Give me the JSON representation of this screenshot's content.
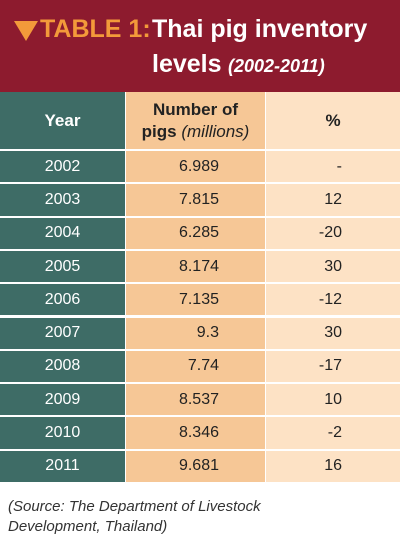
{
  "header": {
    "label": "TABLE 1:",
    "title": "Thai pig inventory",
    "title_line2": "levels",
    "subtitle": "(2002-2011)"
  },
  "table": {
    "columns": [
      "Year",
      {
        "main": "Number of",
        "main_line2": "pigs",
        "unit": "(millions)"
      },
      "%"
    ],
    "rows": [
      [
        "2002",
        "6.989",
        "-"
      ],
      [
        "2003",
        "7.815",
        "12"
      ],
      [
        "2004",
        "6.285",
        "-20"
      ],
      [
        "2005",
        "8.174",
        "30"
      ],
      [
        "2006",
        "7.135",
        "-12"
      ],
      [
        "2007",
        "9.3",
        "30"
      ],
      [
        "2008",
        "7.74",
        "-17"
      ],
      [
        "2009",
        "8.537",
        "10"
      ],
      [
        "2010",
        "8.346",
        "-2"
      ],
      [
        "2011",
        "9.681",
        "16"
      ]
    ]
  },
  "source": {
    "line1": "(Source: The Department of Livestock",
    "line2": "Development, Thailand)"
  }
}
